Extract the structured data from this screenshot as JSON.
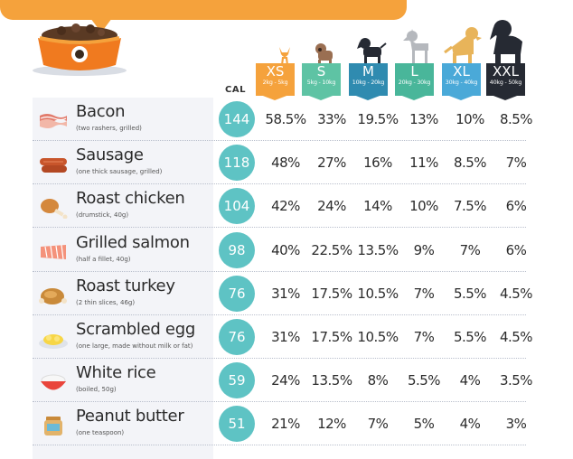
{
  "header": {
    "calories_label": "CAL"
  },
  "sizes": [
    {
      "label": "XS",
      "range": "2kg - 5kg",
      "color": "#f5a23c"
    },
    {
      "label": "S",
      "range": "5kg - 10kg",
      "color": "#5ec3a4"
    },
    {
      "label": "M",
      "range": "10kg - 20kg",
      "color": "#2f8bb0"
    },
    {
      "label": "L",
      "range": "20kg - 30kg",
      "color": "#49b69a"
    },
    {
      "label": "XL",
      "range": "30kg - 40kg",
      "color": "#4aa9d8"
    },
    {
      "label": "XXL",
      "range": "40kg - 50kg",
      "color": "#262a33"
    }
  ],
  "foods": [
    {
      "name": "Bacon",
      "detail": "(two rashers, grilled)",
      "icon": "bacon-icon",
      "cal": "144",
      "pct": [
        "58.5%",
        "33%",
        "19.5%",
        "13%",
        "10%",
        "8.5%"
      ]
    },
    {
      "name": "Sausage",
      "detail": "(one thick sausage, grilled)",
      "icon": "sausage-icon",
      "cal": "118",
      "pct": [
        "48%",
        "27%",
        "16%",
        "11%",
        "8.5%",
        "7%"
      ]
    },
    {
      "name": "Roast chicken",
      "detail": "(drumstick, 40g)",
      "icon": "chicken-drumstick-icon",
      "cal": "104",
      "pct": [
        "42%",
        "24%",
        "14%",
        "10%",
        "7.5%",
        "6%"
      ]
    },
    {
      "name": "Grilled salmon",
      "detail": "(half a fillet, 40g)",
      "icon": "salmon-icon",
      "cal": "98",
      "pct": [
        "40%",
        "22.5%",
        "13.5%",
        "9%",
        "7%",
        "6%"
      ]
    },
    {
      "name": "Roast turkey",
      "detail": "(2 thin slices, 46g)",
      "icon": "turkey-icon",
      "cal": "76",
      "pct": [
        "31%",
        "17.5%",
        "10.5%",
        "7%",
        "5.5%",
        "4.5%"
      ]
    },
    {
      "name": "Scrambled egg",
      "detail": "(one large, made without milk or fat)",
      "icon": "scrambled-egg-icon",
      "cal": "76",
      "pct": [
        "31%",
        "17.5%",
        "10.5%",
        "7%",
        "5.5%",
        "4.5%"
      ]
    },
    {
      "name": "White rice",
      "detail": "(boiled, 50g)",
      "icon": "rice-bowl-icon",
      "cal": "59",
      "pct": [
        "24%",
        "13.5%",
        "8%",
        "5.5%",
        "4%",
        "3.5%"
      ]
    },
    {
      "name": "Peanut butter",
      "detail": "(one teaspoon)",
      "icon": "peanut-butter-jar-icon",
      "cal": "51",
      "pct": [
        "21%",
        "12%",
        "7%",
        "5%",
        "4%",
        "3%"
      ]
    }
  ]
}
